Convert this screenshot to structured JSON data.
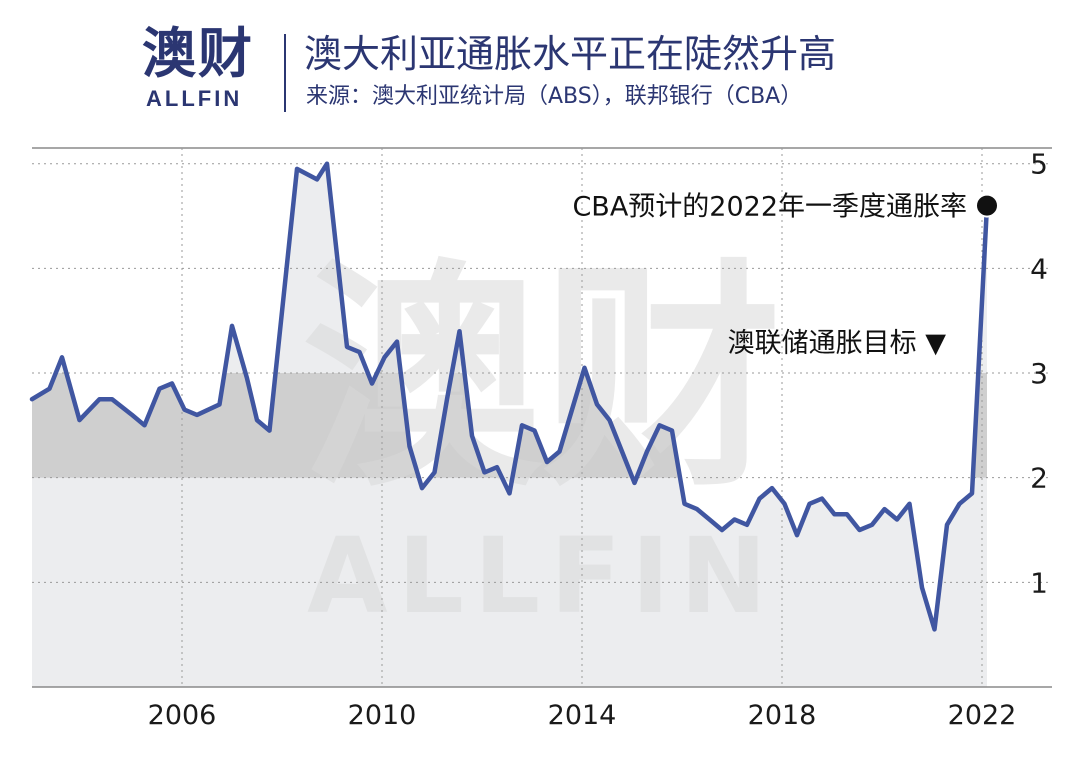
{
  "header": {
    "logo_cn": "澳财",
    "logo_en": "ALLFIN",
    "title": "澳大利亚通胀水平正在陡然升高",
    "subtitle": "来源：澳大利亚统计局（ABS），联邦银行（CBA）"
  },
  "watermark": {
    "cn": "澳财",
    "en": "ALLFIN"
  },
  "colors": {
    "line": "#4056a1",
    "band": "#cfcfcf",
    "area": "#ecedef",
    "text": "#2b3672"
  },
  "chart_data": {
    "type": "line",
    "title": "澳大利亚通胀水平正在陡然升高",
    "xlim": [
      2003.0,
      2023.4
    ],
    "ylim": [
      0,
      5.15
    ],
    "x_ticks": [
      {
        "value": 2006,
        "label": "2006"
      },
      {
        "value": 2010,
        "label": "2010"
      },
      {
        "value": 2014,
        "label": "2014"
      },
      {
        "value": 2018,
        "label": "2018"
      },
      {
        "value": 2022,
        "label": "2022"
      }
    ],
    "y_ticks": [
      {
        "value": 1,
        "label": "1"
      },
      {
        "value": 2,
        "label": "2"
      },
      {
        "value": 3,
        "label": "3"
      },
      {
        "value": 4,
        "label": "4"
      },
      {
        "value": 5,
        "label": "5"
      }
    ],
    "y_axis_position": "right",
    "gridlines": "horizontal dotted",
    "target_band": {
      "range": [
        2,
        3
      ],
      "label": "澳联储通胀目标 ▼"
    },
    "annotation": {
      "x": 2022.1,
      "y": 4.6,
      "label": "CBA预计的2022年一季度通胀率"
    },
    "series": [
      {
        "points": [
          [
            2003.0,
            2.75
          ],
          [
            2003.35,
            2.85
          ],
          [
            2003.6,
            3.15
          ],
          [
            2003.95,
            2.55
          ],
          [
            2004.35,
            2.75
          ],
          [
            2004.6,
            2.75
          ],
          [
            2005.0,
            2.6
          ],
          [
            2005.25,
            2.5
          ],
          [
            2005.55,
            2.85
          ],
          [
            2005.8,
            2.9
          ],
          [
            2006.05,
            2.65
          ],
          [
            2006.3,
            2.6
          ],
          [
            2006.75,
            2.7
          ],
          [
            2007.0,
            3.45
          ],
          [
            2007.3,
            2.95
          ],
          [
            2007.5,
            2.55
          ],
          [
            2007.75,
            2.45
          ],
          [
            2008.3,
            4.95
          ],
          [
            2008.7,
            4.85
          ],
          [
            2008.9,
            5.0
          ],
          [
            2009.3,
            3.25
          ],
          [
            2009.55,
            3.2
          ],
          [
            2009.8,
            2.9
          ],
          [
            2010.05,
            3.15
          ],
          [
            2010.3,
            3.3
          ],
          [
            2010.55,
            2.3
          ],
          [
            2010.8,
            1.9
          ],
          [
            2011.05,
            2.05
          ],
          [
            2011.3,
            2.75
          ],
          [
            2011.55,
            3.4
          ],
          [
            2011.8,
            2.4
          ],
          [
            2012.05,
            2.05
          ],
          [
            2012.3,
            2.1
          ],
          [
            2012.55,
            1.85
          ],
          [
            2012.8,
            2.5
          ],
          [
            2013.05,
            2.45
          ],
          [
            2013.3,
            2.15
          ],
          [
            2013.55,
            2.25
          ],
          [
            2013.8,
            2.65
          ],
          [
            2014.05,
            3.05
          ],
          [
            2014.3,
            2.7
          ],
          [
            2014.55,
            2.55
          ],
          [
            2014.8,
            2.25
          ],
          [
            2015.05,
            1.95
          ],
          [
            2015.3,
            2.25
          ],
          [
            2015.55,
            2.5
          ],
          [
            2015.8,
            2.45
          ],
          [
            2016.05,
            1.75
          ],
          [
            2016.3,
            1.7
          ],
          [
            2016.55,
            1.6
          ],
          [
            2016.8,
            1.5
          ],
          [
            2017.05,
            1.6
          ],
          [
            2017.3,
            1.55
          ],
          [
            2017.55,
            1.8
          ],
          [
            2017.8,
            1.9
          ],
          [
            2018.05,
            1.75
          ],
          [
            2018.3,
            1.45
          ],
          [
            2018.55,
            1.75
          ],
          [
            2018.8,
            1.8
          ],
          [
            2019.05,
            1.65
          ],
          [
            2019.3,
            1.65
          ],
          [
            2019.55,
            1.5
          ],
          [
            2019.8,
            1.55
          ],
          [
            2020.05,
            1.7
          ],
          [
            2020.3,
            1.6
          ],
          [
            2020.55,
            1.75
          ],
          [
            2020.8,
            0.95
          ],
          [
            2021.05,
            0.55
          ],
          [
            2021.3,
            1.55
          ],
          [
            2021.55,
            1.75
          ],
          [
            2021.8,
            1.85
          ],
          [
            2022.1,
            4.6
          ]
        ]
      }
    ]
  }
}
